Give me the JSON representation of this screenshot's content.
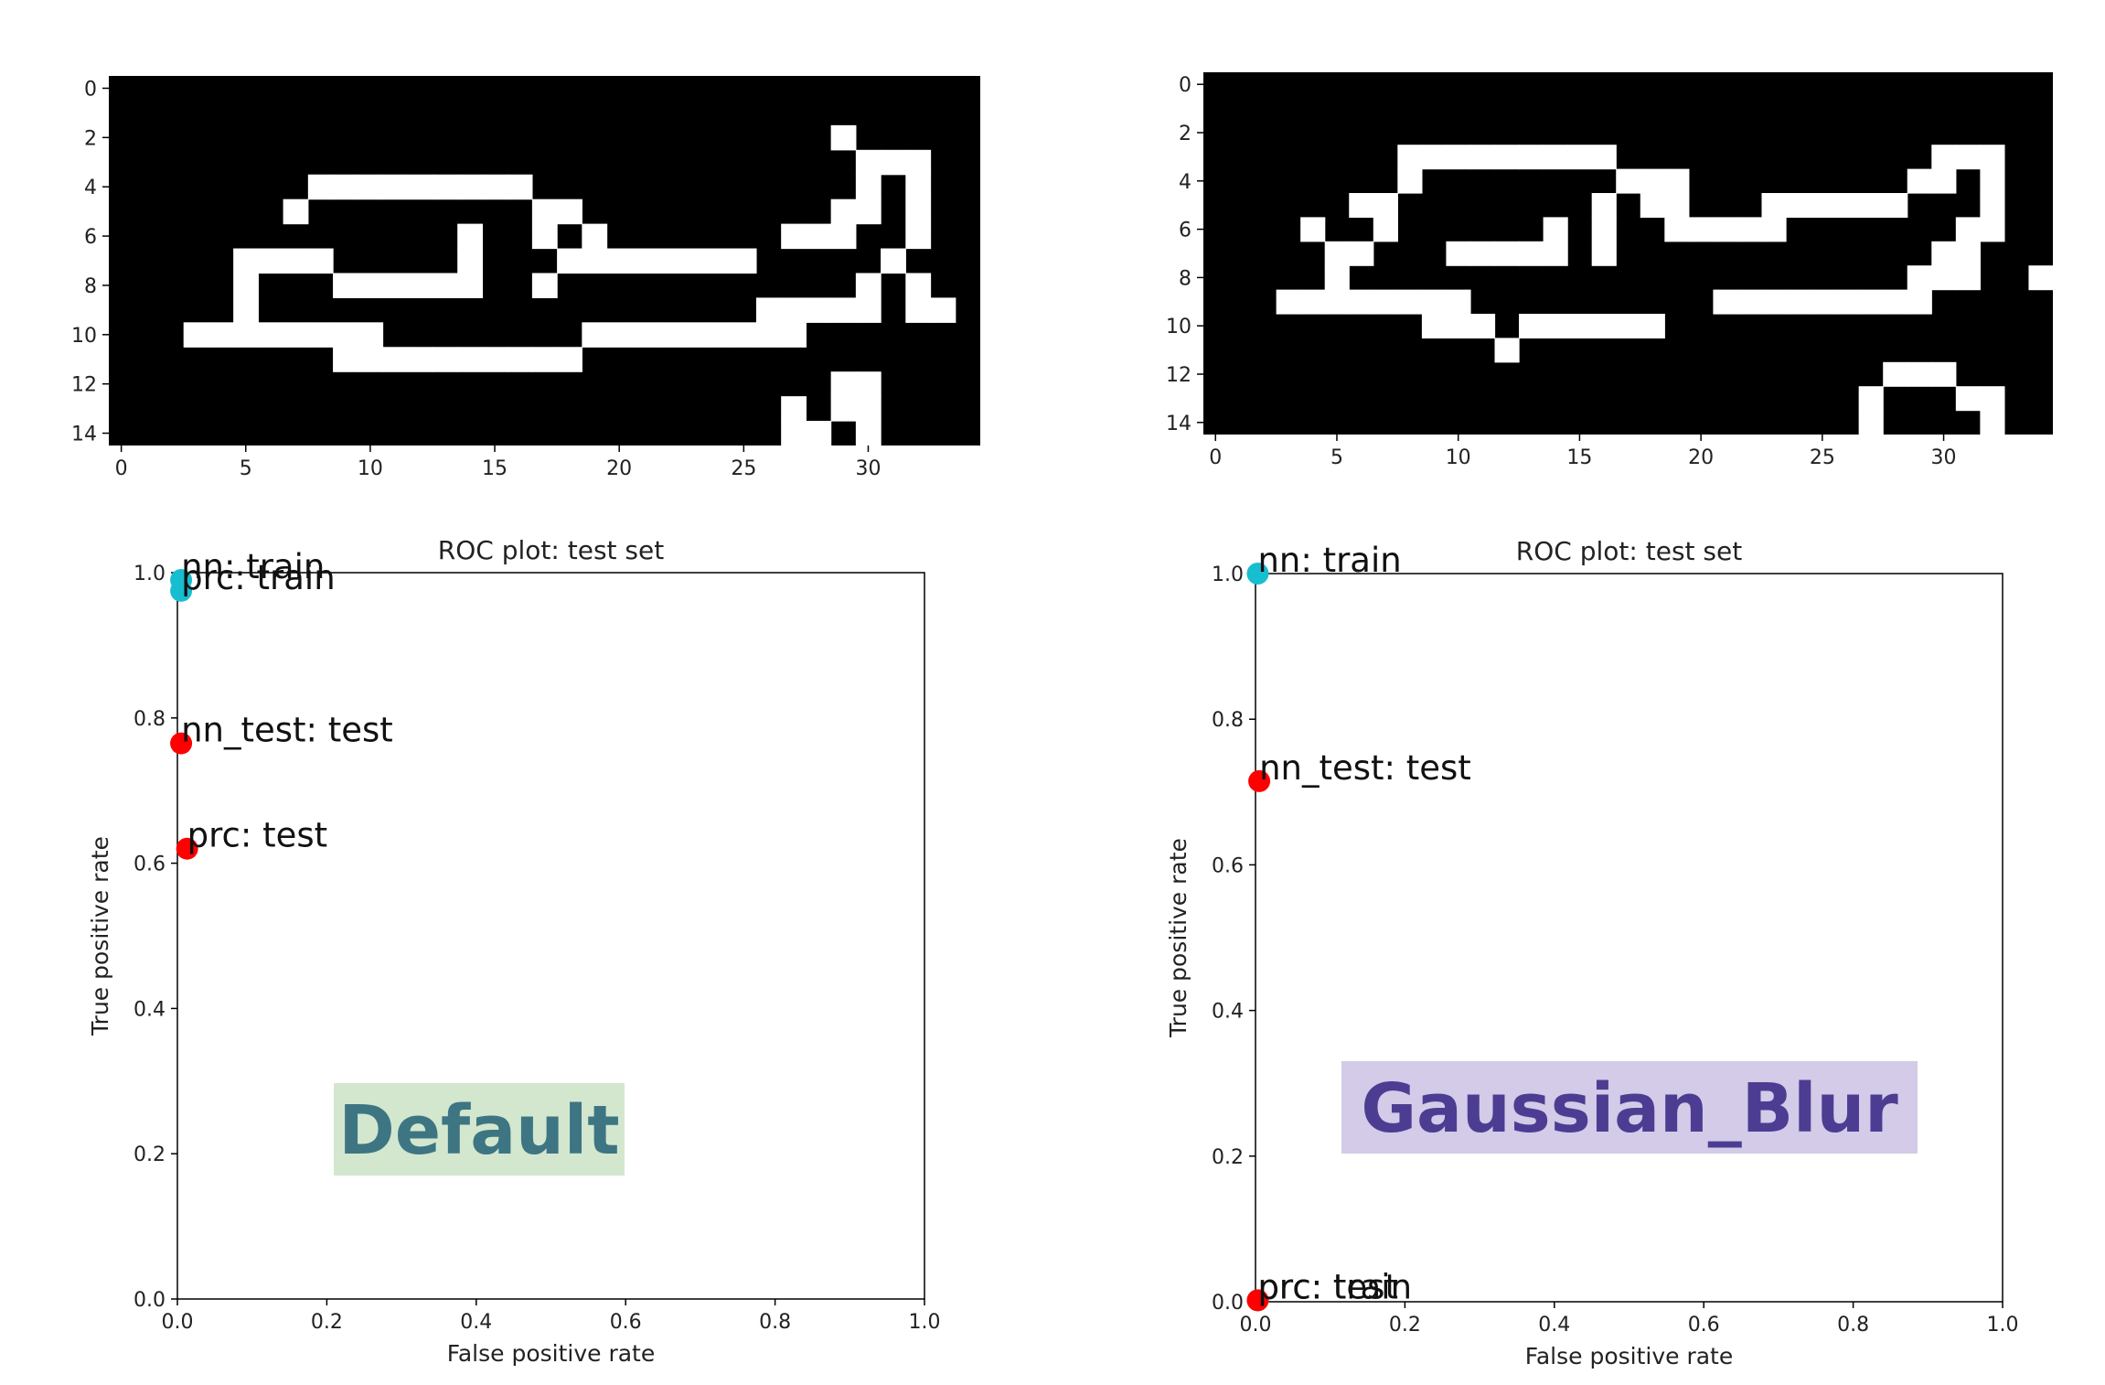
{
  "chart_data": [
    {
      "type": "heatmap",
      "panel": "top-left",
      "colormap": "gray",
      "colors": {
        "on": "#ffffff",
        "off": "#000000"
      },
      "xticks": [
        0,
        5,
        10,
        15,
        20,
        25,
        30
      ],
      "yticks": [
        0,
        2,
        4,
        6,
        8,
        10,
        12,
        14
      ],
      "xlim": [
        -0.5,
        34.5
      ],
      "ylim": [
        14.5,
        -0.5
      ],
      "grid": false,
      "rows": [
        "00000000000000000000000000000000000",
        "00000000000000000000000000000000000",
        "00000000000000000000000000000100000",
        "00000000000000000000000000000011100",
        "00000000111111111000000000000010100",
        "00000001000000000110000000000110100",
        "00000000000000100101000000011100100",
        "00000111100000100011111111000001000",
        "00000100011111100100000000000010100",
        "00000100000000000000000000111110110",
        "00011111111000000001111111110000000",
        "00000000011111111110000000000000000",
        "00000000000000000000000000000110000",
        "00000000000000000000000000010110000",
        "00000000000000000000000000011010000"
      ]
    },
    {
      "type": "heatmap",
      "panel": "top-right",
      "colormap": "gray",
      "colors": {
        "on": "#ffffff",
        "off": "#000000"
      },
      "xticks": [
        0,
        5,
        10,
        15,
        20,
        25,
        30
      ],
      "yticks": [
        0,
        2,
        4,
        6,
        8,
        10,
        12,
        14
      ],
      "xlim": [
        -0.5,
        34.5
      ],
      "ylim": [
        14.5,
        -0.5
      ],
      "grid": false,
      "rows": [
        "00000000000000000000000000000000000",
        "00000000000000000000000000000000000",
        "00000000000000000000000000000000000",
        "00000000111111111000000000000011100",
        "00000000100000000111000000000110100",
        "00000011000000001011000111111000100",
        "00001001000000101001111100000001100",
        "00000110001111101000000000000011000",
        "00000100000000000000000000000111001",
        "00011111111000000000011111111100000",
        "00000000011101111110000000000000000",
        "00000000000010000000000000000000000",
        "00000000000000000000000000001110000",
        "00000000000000000000000000010001100",
        "00000000000000000000000000010000100"
      ]
    },
    {
      "type": "scatter",
      "panel": "bottom-left",
      "title": "ROC plot: test set",
      "xlabel": "False positive rate",
      "ylabel": "True positive rate",
      "xlim": [
        0,
        1
      ],
      "ylim": [
        0,
        1
      ],
      "xticks": [
        "0.0",
        "0.2",
        "0.4",
        "0.6",
        "0.8",
        "1.0"
      ],
      "yticks": [
        "0.0",
        "0.2",
        "0.4",
        "0.6",
        "0.8",
        "1.0"
      ],
      "grid": false,
      "points": [
        {
          "x": 0.005,
          "y": 0.99,
          "label": "nn: train",
          "color": "#17becf"
        },
        {
          "x": 0.005,
          "y": 0.975,
          "label": "prc: train",
          "color": "#17becf"
        },
        {
          "x": 0.005,
          "y": 0.765,
          "label": "nn_test: test",
          "color": "#ff0000"
        },
        {
          "x": 0.013,
          "y": 0.62,
          "label": "prc: test",
          "color": "#ff0000"
        }
      ],
      "annotation": {
        "text": "Default",
        "bg": "#d3e7cf",
        "fg": "#3d7583"
      }
    },
    {
      "type": "scatter",
      "panel": "bottom-right",
      "title": "ROC plot: test set",
      "xlabel": "False positive rate",
      "ylabel": "True positive rate",
      "xlim": [
        0,
        1
      ],
      "ylim": [
        0,
        1
      ],
      "xticks": [
        "0.0",
        "0.2",
        "0.4",
        "0.6",
        "0.8",
        "1.0"
      ],
      "yticks": [
        "0.0",
        "0.2",
        "0.4",
        "0.6",
        "0.8",
        "1.0"
      ],
      "grid": false,
      "points": [
        {
          "x": 0.003,
          "y": 1.0,
          "label": "nn: train",
          "color": "#17becf"
        },
        {
          "x": 0.005,
          "y": 0.715,
          "label": "nn_test: test",
          "color": "#ff0000"
        },
        {
          "x": 0.003,
          "y": 0.002,
          "label": "prc: train",
          "color": "#17becf"
        },
        {
          "x": 0.003,
          "y": 0.002,
          "label": "prc: test",
          "color": "#ff0000"
        }
      ],
      "annotation": {
        "text": "Gaussian_Blur",
        "bg": "#d3cbe7",
        "fg": "#4c3d93"
      }
    }
  ]
}
